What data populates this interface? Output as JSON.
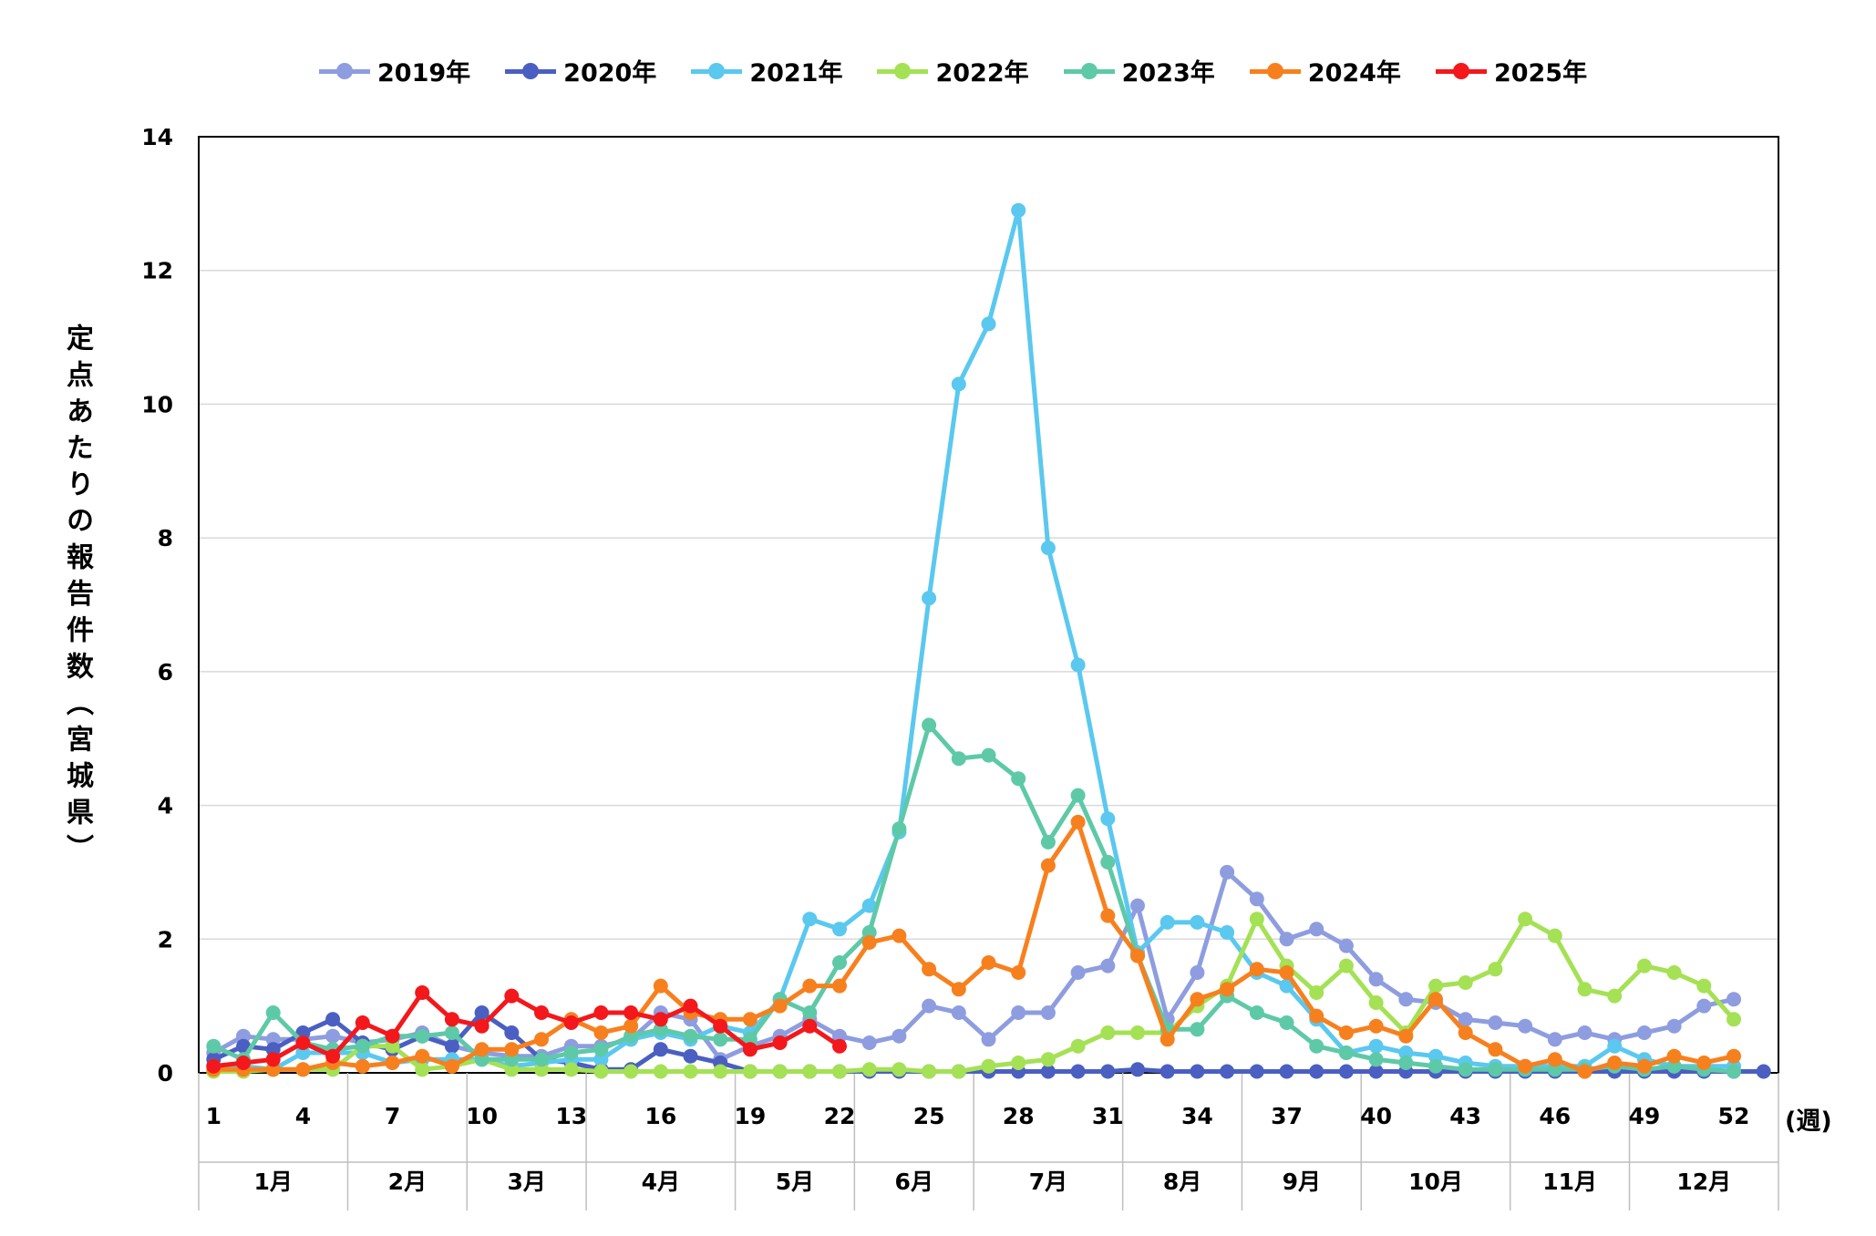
{
  "chart_data": {
    "type": "line",
    "ylabel": "定点あたりの報告件数（宮城県）",
    "xunit": "(週)",
    "ylim": [
      0,
      14
    ],
    "yticks": [
      0,
      2,
      4,
      6,
      8,
      10,
      12,
      14
    ],
    "xticks": [
      1,
      4,
      7,
      10,
      13,
      16,
      19,
      22,
      25,
      28,
      31,
      34,
      37,
      40,
      43,
      46,
      49,
      52
    ],
    "x": [
      1,
      2,
      3,
      4,
      5,
      6,
      7,
      8,
      9,
      10,
      11,
      12,
      13,
      14,
      15,
      16,
      17,
      18,
      19,
      20,
      21,
      22,
      23,
      24,
      25,
      26,
      27,
      28,
      29,
      30,
      31,
      32,
      33,
      34,
      35,
      36,
      37,
      38,
      39,
      40,
      41,
      42,
      43,
      44,
      45,
      46,
      47,
      48,
      49,
      50,
      51,
      52,
      53
    ],
    "months": [
      {
        "label": "1月",
        "start": 0.5,
        "end": 5.5
      },
      {
        "label": "2月",
        "start": 5.5,
        "end": 9.5
      },
      {
        "label": "3月",
        "start": 9.5,
        "end": 13.5
      },
      {
        "label": "4月",
        "start": 13.5,
        "end": 18.5
      },
      {
        "label": "5月",
        "start": 18.5,
        "end": 22.5
      },
      {
        "label": "6月",
        "start": 22.5,
        "end": 26.5
      },
      {
        "label": "7月",
        "start": 26.5,
        "end": 31.5
      },
      {
        "label": "8月",
        "start": 31.5,
        "end": 35.5
      },
      {
        "label": "9月",
        "start": 35.5,
        "end": 39.5
      },
      {
        "label": "10月",
        "start": 39.5,
        "end": 44.5
      },
      {
        "label": "11月",
        "start": 44.5,
        "end": 48.5
      },
      {
        "label": "12月",
        "start": 48.5,
        "end": 53.5
      }
    ],
    "grid": true,
    "legend_position": "top",
    "series": [
      {
        "name": "2019年",
        "color": "#8e9ddf",
        "values": [
          0.3,
          0.55,
          0.5,
          0.5,
          0.55,
          0.45,
          0.5,
          0.6,
          0.4,
          0.3,
          0.25,
          0.25,
          0.4,
          0.4,
          0.5,
          0.9,
          0.8,
          0.2,
          0.4,
          0.55,
          0.8,
          0.55,
          0.45,
          0.55,
          1.0,
          0.9,
          0.5,
          0.9,
          0.9,
          1.5,
          1.6,
          2.5,
          0.8,
          1.5,
          3.0,
          2.6,
          2.0,
          2.15,
          1.9,
          1.4,
          1.1,
          1.05,
          0.8,
          0.75,
          0.7,
          0.5,
          0.6,
          0.5,
          0.6,
          0.7,
          1.0,
          1.1,
          null
        ]
      },
      {
        "name": "2020年",
        "color": "#4a5fc1",
        "values": [
          0.2,
          0.4,
          0.35,
          0.6,
          0.8,
          0.45,
          0.35,
          0.55,
          0.4,
          0.9,
          0.6,
          0.2,
          0.15,
          0.05,
          0.05,
          0.35,
          0.25,
          0.15,
          0.02,
          0.02,
          0.02,
          0.02,
          0.02,
          0.02,
          0.02,
          0.02,
          0.02,
          0.02,
          0.02,
          0.02,
          0.02,
          0.05,
          0.02,
          0.02,
          0.02,
          0.02,
          0.02,
          0.02,
          0.02,
          0.02,
          0.02,
          0.02,
          0.02,
          0.02,
          0.02,
          0.02,
          0.02,
          0.02,
          0.02,
          0.02,
          0.02,
          0.02,
          0.02
        ]
      },
      {
        "name": "2021年",
        "color": "#5ac8ef",
        "values": [
          0.1,
          0.1,
          0.05,
          0.3,
          0.3,
          0.3,
          0.15,
          0.2,
          0.2,
          0.2,
          0.1,
          0.15,
          0.2,
          0.2,
          0.5,
          0.6,
          0.5,
          0.7,
          0.6,
          1.1,
          2.3,
          2.15,
          2.5,
          3.6,
          7.1,
          10.3,
          11.2,
          12.9,
          7.85,
          6.1,
          3.8,
          1.8,
          2.25,
          2.25,
          2.1,
          1.5,
          1.3,
          0.8,
          0.3,
          0.4,
          0.3,
          0.25,
          0.15,
          0.1,
          0.1,
          0.1,
          0.1,
          0.4,
          0.2,
          0.1,
          0.1,
          0.1,
          null
        ]
      },
      {
        "name": "2022年",
        "color": "#a4e154",
        "values": [
          0.02,
          0.02,
          0.05,
          0.05,
          0.05,
          0.4,
          0.4,
          0.05,
          0.1,
          0.2,
          0.05,
          0.05,
          0.05,
          0.02,
          0.02,
          0.02,
          0.02,
          0.02,
          0.02,
          0.02,
          0.02,
          0.02,
          0.05,
          0.05,
          0.02,
          0.02,
          0.1,
          0.15,
          0.2,
          0.4,
          0.6,
          0.6,
          0.6,
          1.0,
          1.3,
          2.3,
          1.6,
          1.2,
          1.6,
          1.05,
          0.6,
          1.3,
          1.35,
          1.55,
          2.3,
          2.05,
          1.25,
          1.15,
          1.6,
          1.5,
          1.3,
          0.8,
          null
        ]
      },
      {
        "name": "2023年",
        "color": "#5ec9a7",
        "values": [
          0.4,
          0.2,
          0.9,
          0.45,
          0.35,
          0.4,
          0.55,
          0.55,
          0.6,
          0.2,
          0.2,
          0.2,
          0.3,
          0.35,
          0.55,
          0.65,
          0.55,
          0.5,
          0.5,
          1.1,
          0.9,
          1.65,
          2.1,
          3.65,
          5.2,
          4.7,
          4.75,
          4.4,
          3.45,
          4.15,
          3.15,
          1.75,
          0.65,
          0.65,
          1.15,
          0.9,
          0.75,
          0.4,
          0.3,
          0.2,
          0.15,
          0.1,
          0.05,
          0.05,
          0.05,
          0.05,
          0.05,
          0.1,
          0.05,
          0.1,
          0.05,
          0.02,
          null
        ]
      },
      {
        "name": "2024年",
        "color": "#f7801e",
        "values": [
          0.05,
          0.05,
          0.05,
          0.05,
          0.15,
          0.1,
          0.15,
          0.25,
          0.1,
          0.35,
          0.35,
          0.5,
          0.8,
          0.6,
          0.7,
          1.3,
          0.9,
          0.8,
          0.8,
          1.0,
          1.3,
          1.3,
          1.95,
          2.05,
          1.55,
          1.25,
          1.65,
          1.5,
          3.1,
          3.75,
          2.35,
          1.75,
          0.5,
          1.1,
          1.25,
          1.55,
          1.5,
          0.85,
          0.6,
          0.7,
          0.55,
          1.1,
          0.6,
          0.35,
          0.1,
          0.2,
          0.02,
          0.15,
          0.1,
          0.25,
          0.15,
          0.25,
          null
        ]
      },
      {
        "name": "2025年",
        "color": "#f2181c",
        "values": [
          0.1,
          0.15,
          0.2,
          0.45,
          0.25,
          0.75,
          0.55,
          1.2,
          0.8,
          0.7,
          1.15,
          0.9,
          0.75,
          0.9,
          0.9,
          0.8,
          1.0,
          0.7,
          0.35,
          0.45,
          0.7,
          0.4,
          null,
          null,
          null,
          null,
          null,
          null,
          null,
          null,
          null,
          null,
          null,
          null,
          null,
          null,
          null,
          null,
          null,
          null,
          null,
          null,
          null,
          null,
          null,
          null,
          null,
          null,
          null,
          null,
          null,
          null,
          null
        ]
      }
    ]
  }
}
